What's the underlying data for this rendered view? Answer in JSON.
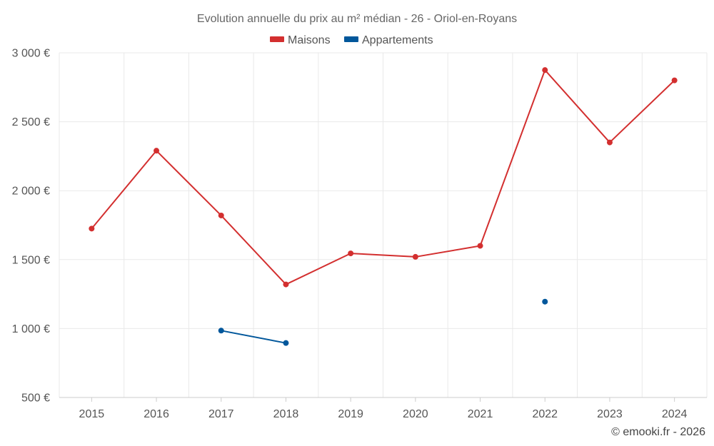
{
  "chart_data": {
    "type": "line",
    "title": "Evolution annuelle du prix au m² médian - 26 - Oriol-en-Royans",
    "categories": [
      "2015",
      "2016",
      "2017",
      "2018",
      "2019",
      "2020",
      "2021",
      "2022",
      "2023",
      "2024"
    ],
    "series": [
      {
        "name": "Maisons",
        "color": "#d32f2f",
        "values": [
          1725,
          2290,
          1820,
          1320,
          1545,
          1520,
          1600,
          2875,
          2350,
          2800
        ]
      },
      {
        "name": "Appartements",
        "color": "#01579b",
        "values": [
          null,
          null,
          985,
          895,
          null,
          null,
          null,
          1195,
          null,
          null
        ]
      }
    ],
    "ylim": [
      500,
      3000
    ],
    "yticks": [
      500,
      1000,
      1500,
      2000,
      2500,
      3000
    ],
    "ytick_labels": [
      "500 €",
      "1 000 €",
      "1 500 €",
      "2 000 €",
      "2 500 €",
      "3 000 €"
    ],
    "xlabel": "",
    "ylabel": "",
    "grid": true,
    "legend_position": "top-center",
    "credit": "© emooki.fr - 2026"
  }
}
